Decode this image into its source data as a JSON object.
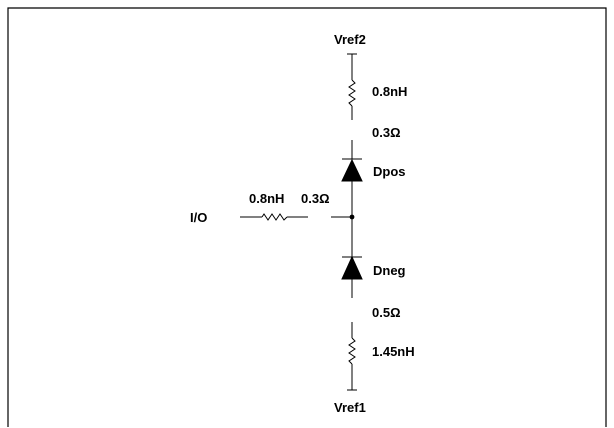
{
  "colors": {
    "ink": "#000000",
    "background": "#ffffff"
  },
  "nodes": {
    "vref2": "Vref2",
    "vref1": "Vref1",
    "io": "I/O"
  },
  "components": {
    "top_inductor": "0.8nH",
    "top_resistor": "0.3Ω",
    "dpos": "Dpos",
    "io_inductor": "0.8nH",
    "io_resistor": "0.3Ω",
    "dneg": "Dneg",
    "bottom_resistor": "0.5Ω",
    "bottom_inductor": "1.45nH"
  }
}
